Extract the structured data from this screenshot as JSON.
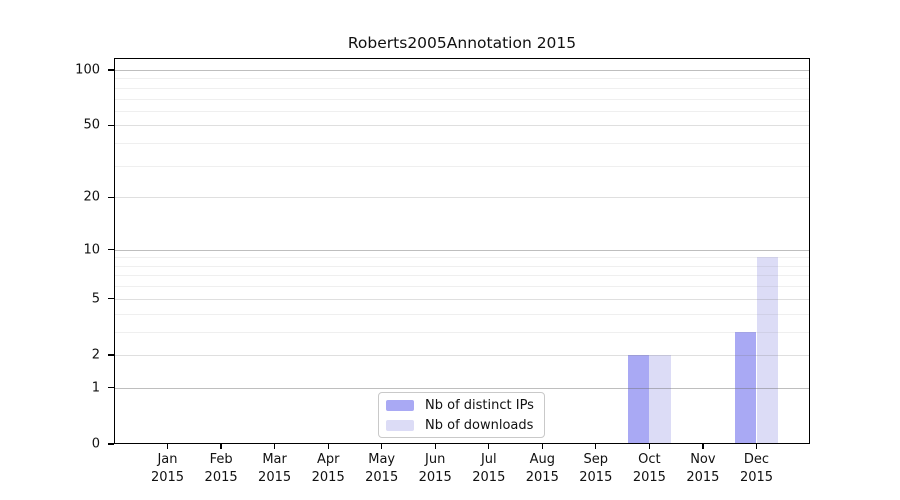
{
  "figure": {
    "background": "#ffffff",
    "axis_color": "#000000"
  },
  "chart_data": {
    "type": "bar",
    "title": "Roberts2005Annotation 2015",
    "categories": [
      "Jan",
      "Feb",
      "Mar",
      "Apr",
      "May",
      "Jun",
      "Jul",
      "Aug",
      "Sep",
      "Oct",
      "Nov",
      "Dec"
    ],
    "category_sublabel": "2015",
    "series": [
      {
        "name": "Nb of distinct IPs",
        "color": "#a9a9f4",
        "values": [
          0,
          0,
          0,
          0,
          0,
          0,
          0,
          0,
          0,
          2,
          0,
          3
        ]
      },
      {
        "name": "Nb of downloads",
        "color": "#dcdcf6",
        "values": [
          0,
          0,
          0,
          0,
          0,
          0,
          0,
          0,
          0,
          2,
          0,
          9
        ]
      }
    ],
    "xlabel": "",
    "ylabel": "",
    "y_axis": {
      "scale": "log1p",
      "tick_values": [
        0,
        1,
        2,
        5,
        10,
        20,
        50,
        100
      ],
      "tick_labels": [
        "0",
        "1",
        "2",
        "5",
        "10",
        "20",
        "50",
        "100"
      ],
      "ylim": [
        0,
        116
      ]
    },
    "grid": {
      "major_values": [
        1,
        10,
        100
      ],
      "mid_values": [
        2,
        5,
        20,
        50
      ],
      "minor_values": [
        3,
        4,
        6,
        7,
        8,
        9,
        30,
        40,
        60,
        70,
        80,
        90
      ],
      "major_color": "rgba(110,110,110,0.45)",
      "mid_color": "rgba(120,120,120,0.24)",
      "minor_color": "rgba(130,130,130,0.13)"
    },
    "legend": {
      "position": "bottom-center",
      "entries": [
        "Nb of distinct IPs",
        "Nb of downloads"
      ]
    }
  }
}
